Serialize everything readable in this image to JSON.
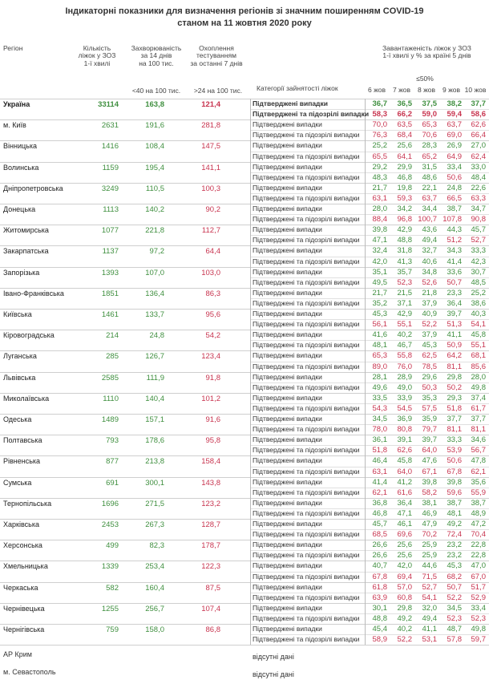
{
  "header": {
    "title": "Індикаторні показники для визначення регіонів зі значним поширенням COVID-19",
    "subtitle": "станом на 11 жовтня 2020 року"
  },
  "columns": {
    "region": "Регіон",
    "beds": "Кількість\nліжок у ЗОЗ\n1-ї хвилі",
    "incidence": "Захворюваність\nза 14 днів\nна 100 тис.",
    "testing": "Охоплення\nтестуванням\nза останні 7 днів",
    "category": "Категорії зайнятості ліжок",
    "occupancy": "Завантаженість ліжок у ЗОЗ\n1-ї хвилі у % за країні 5 днів"
  },
  "thresholds": {
    "incidence": "<40 на 100 тис.",
    "testing": ">24 на 100 тис.",
    "occupancy": "≤50%"
  },
  "days": [
    "6 жов",
    "7 жов",
    "8 жов",
    "9 жов",
    "10 жов"
  ],
  "categories": [
    "Підтверджені випадки",
    "Підтверджені та підозрілі випадки"
  ],
  "rows": [
    {
      "region": "Україна",
      "beds": "33114",
      "incidence": "163,8",
      "testing": "121,4",
      "confirmed": [
        "36,7",
        "36,5",
        "37,5",
        "38,2",
        "37,7"
      ],
      "suspected": [
        "58,3",
        "66,2",
        "59,0",
        "59,4",
        "58,6"
      ]
    },
    {
      "region": "м. Київ",
      "beds": "2631",
      "incidence": "191,6",
      "testing": "281,8",
      "confirmed": [
        "70,0",
        "63,5",
        "65,3",
        "63,7",
        "62,6"
      ],
      "suspected": [
        "76,3",
        "68,4",
        "70,6",
        "69,0",
        "66,4"
      ]
    },
    {
      "region": "Вінницька",
      "beds": "1416",
      "incidence": "108,4",
      "testing": "147,5",
      "confirmed": [
        "25,2",
        "25,6",
        "28,3",
        "26,9",
        "27,0"
      ],
      "suspected": [
        "65,5",
        "64,1",
        "65,2",
        "64,9",
        "62,4"
      ]
    },
    {
      "region": "Волинська",
      "beds": "1159",
      "incidence": "195,4",
      "testing": "141,1",
      "confirmed": [
        "29,2",
        "29,9",
        "31,5",
        "33,4",
        "33,0"
      ],
      "suspected": [
        "48,3",
        "46,8",
        "48,6",
        "50,6",
        "48,4"
      ]
    },
    {
      "region": "Дніпропетровська",
      "beds": "3249",
      "incidence": "110,5",
      "testing": "100,3",
      "confirmed": [
        "21,7",
        "19,8",
        "22,1",
        "24,8",
        "22,6"
      ],
      "suspected": [
        "63,1",
        "59,3",
        "63,7",
        "66,5",
        "63,3"
      ]
    },
    {
      "region": "Донецька",
      "beds": "1113",
      "incidence": "140,2",
      "testing": "90,2",
      "confirmed": [
        "28,0",
        "34,2",
        "34,4",
        "38,7",
        "34,7"
      ],
      "suspected": [
        "88,4",
        "96,8",
        "100,7",
        "107,8",
        "90,8"
      ]
    },
    {
      "region": "Житомирська",
      "beds": "1077",
      "incidence": "221,8",
      "testing": "112,7",
      "confirmed": [
        "39,8",
        "42,9",
        "43,6",
        "44,3",
        "45,7"
      ],
      "suspected": [
        "47,1",
        "48,8",
        "49,4",
        "51,2",
        "52,7"
      ]
    },
    {
      "region": "Закарпатська",
      "beds": "1137",
      "incidence": "97,2",
      "testing": "64,4",
      "confirmed": [
        "32,4",
        "31,8",
        "32,7",
        "34,3",
        "33,3"
      ],
      "suspected": [
        "42,0",
        "41,3",
        "40,6",
        "41,4",
        "42,3"
      ]
    },
    {
      "region": "Запорізька",
      "beds": "1393",
      "incidence": "107,0",
      "testing": "103,0",
      "confirmed": [
        "35,1",
        "35,7",
        "34,8",
        "33,6",
        "30,7"
      ],
      "suspected": [
        "49,5",
        "52,3",
        "52,6",
        "50,7",
        "48,5"
      ]
    },
    {
      "region": "Івано-Франківська",
      "beds": "1851",
      "incidence": "136,4",
      "testing": "86,3",
      "confirmed": [
        "21,7",
        "21,5",
        "21,8",
        "23,3",
        "25,2"
      ],
      "suspected": [
        "35,2",
        "37,1",
        "37,9",
        "36,4",
        "38,6"
      ]
    },
    {
      "region": "Київська",
      "beds": "1461",
      "incidence": "133,7",
      "testing": "95,6",
      "confirmed": [
        "45,3",
        "42,9",
        "40,9",
        "39,7",
        "40,3"
      ],
      "suspected": [
        "56,1",
        "55,1",
        "52,2",
        "51,3",
        "54,1"
      ]
    },
    {
      "region": "Кіровоградська",
      "beds": "214",
      "incidence": "24,8",
      "testing": "54,2",
      "confirmed": [
        "41,6",
        "40,2",
        "37,9",
        "41,1",
        "45,8"
      ],
      "suspected": [
        "48,1",
        "46,7",
        "45,3",
        "50,9",
        "55,1"
      ]
    },
    {
      "region": "Луганська",
      "beds": "285",
      "incidence": "126,7",
      "testing": "123,4",
      "confirmed": [
        "65,3",
        "55,8",
        "62,5",
        "64,2",
        "68,1"
      ],
      "suspected": [
        "89,0",
        "76,0",
        "78,5",
        "81,1",
        "85,6"
      ]
    },
    {
      "region": "Львівська",
      "beds": "2585",
      "incidence": "111,9",
      "testing": "91,8",
      "confirmed": [
        "28,1",
        "28,9",
        "29,6",
        "29,8",
        "28,0"
      ],
      "suspected": [
        "49,6",
        "49,0",
        "50,3",
        "50,2",
        "49,8"
      ]
    },
    {
      "region": "Миколаївська",
      "beds": "1110",
      "incidence": "140,4",
      "testing": "101,2",
      "confirmed": [
        "33,5",
        "33,9",
        "35,3",
        "29,3",
        "37,4"
      ],
      "suspected": [
        "54,3",
        "54,5",
        "57,5",
        "51,8",
        "61,7"
      ]
    },
    {
      "region": "Одеська",
      "beds": "1489",
      "incidence": "157,1",
      "testing": "91,6",
      "confirmed": [
        "34,5",
        "36,9",
        "35,9",
        "37,7",
        "37,7"
      ],
      "suspected": [
        "78,0",
        "80,8",
        "79,7",
        "81,1",
        "81,1"
      ]
    },
    {
      "region": "Полтавська",
      "beds": "793",
      "incidence": "178,6",
      "testing": "95,8",
      "confirmed": [
        "36,1",
        "39,1",
        "39,7",
        "33,3",
        "34,6"
      ],
      "suspected": [
        "51,8",
        "62,6",
        "64,0",
        "53,9",
        "56,7"
      ]
    },
    {
      "region": "Рівненська",
      "beds": "877",
      "incidence": "213,8",
      "testing": "158,4",
      "confirmed": [
        "46,4",
        "45,8",
        "47,6",
        "50,6",
        "47,8"
      ],
      "suspected": [
        "63,1",
        "64,0",
        "67,1",
        "67,8",
        "62,1"
      ]
    },
    {
      "region": "Сумська",
      "beds": "691",
      "incidence": "300,1",
      "testing": "143,8",
      "confirmed": [
        "41,4",
        "41,2",
        "39,8",
        "39,8",
        "35,6"
      ],
      "suspected": [
        "62,1",
        "61,6",
        "58,2",
        "59,6",
        "55,9"
      ]
    },
    {
      "region": "Тернопільська",
      "beds": "1696",
      "incidence": "271,5",
      "testing": "123,2",
      "confirmed": [
        "36,8",
        "36,4",
        "38,1",
        "38,7",
        "38,7"
      ],
      "suspected": [
        "46,8",
        "47,1",
        "46,9",
        "48,1",
        "48,9"
      ]
    },
    {
      "region": "Харківська",
      "beds": "2453",
      "incidence": "267,3",
      "testing": "128,7",
      "confirmed": [
        "45,7",
        "46,1",
        "47,9",
        "49,2",
        "47,2"
      ],
      "suspected": [
        "68,5",
        "69,6",
        "70,2",
        "72,4",
        "70,4"
      ]
    },
    {
      "region": "Херсонська",
      "beds": "499",
      "incidence": "82,3",
      "testing": "178,7",
      "confirmed": [
        "26,6",
        "25,6",
        "25,9",
        "23,2",
        "22,8"
      ],
      "suspected": [
        "26,6",
        "25,6",
        "25,9",
        "23,2",
        "22,8"
      ]
    },
    {
      "region": "Хмельницька",
      "beds": "1339",
      "incidence": "253,4",
      "testing": "122,3",
      "confirmed": [
        "40,7",
        "42,0",
        "44,6",
        "45,3",
        "47,0"
      ],
      "suspected": [
        "67,8",
        "69,4",
        "71,5",
        "68,2",
        "67,0"
      ]
    },
    {
      "region": "Черкаська",
      "beds": "582",
      "incidence": "160,4",
      "testing": "87,5",
      "confirmed": [
        "61,8",
        "57,0",
        "52,7",
        "50,7",
        "51,7"
      ],
      "suspected": [
        "63,9",
        "60,8",
        "54,1",
        "52,2",
        "52,9"
      ]
    },
    {
      "region": "Чернівецька",
      "beds": "1255",
      "incidence": "256,7",
      "testing": "107,4",
      "confirmed": [
        "30,1",
        "29,8",
        "32,0",
        "34,5",
        "33,4"
      ],
      "suspected": [
        "48,8",
        "49,2",
        "49,4",
        "52,3",
        "52,3"
      ]
    },
    {
      "region": "Чернігівська",
      "beds": "759",
      "incidence": "158,0",
      "testing": "86,8",
      "confirmed": [
        "45,4",
        "40,2",
        "41,1",
        "48,7",
        "49,8"
      ],
      "suspected": [
        "58,9",
        "52,2",
        "53,1",
        "57,8",
        "59,7"
      ]
    }
  ],
  "missing": [
    {
      "region": "АР Крим",
      "note": "відсутні дані"
    },
    {
      "region": "м. Севастополь",
      "note": "відсутні дані"
    }
  ]
}
